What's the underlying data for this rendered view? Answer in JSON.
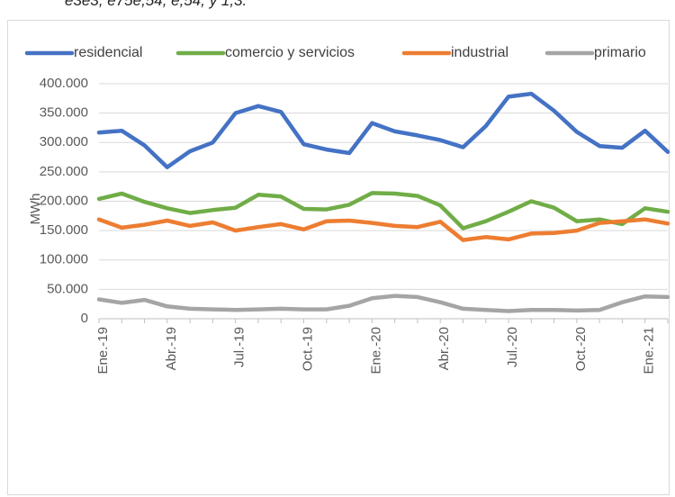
{
  "header_fragment": "e3e3, e75e,54, e,54, y 1,3.",
  "chart_data": {
    "type": "line",
    "title": "",
    "xlabel": "",
    "ylabel": "MWh",
    "ylim": [
      0,
      400000
    ],
    "yticks": [
      0,
      50000,
      100000,
      150000,
      200000,
      250000,
      300000,
      350000,
      400000
    ],
    "ytick_labels": [
      "0",
      "50.000",
      "100.000",
      "150.000",
      "200.000",
      "250.000",
      "300.000",
      "350.000",
      "400.000"
    ],
    "categories": [
      "Ene.-19",
      "Feb.-19",
      "Mar.-19",
      "Abr.-19",
      "May.-19",
      "Jun.-19",
      "Jul.-19",
      "Ago.-19",
      "Sep.-19",
      "Oct.-19",
      "Nov.-19",
      "Dic.-19",
      "Ene.-20",
      "Feb.-20",
      "Mar.-20",
      "Abr.-20",
      "May.-20",
      "Jun.-20",
      "Jul.-20",
      "Ago.-20",
      "Sep.-20",
      "Oct.-20",
      "Nov.-20",
      "Dic.-20",
      "Ene.-21",
      "Feb.-21"
    ],
    "xtick_labels": [
      {
        "index": 0,
        "label": "Ene.-19"
      },
      {
        "index": 3,
        "label": "Abr.-19"
      },
      {
        "index": 6,
        "label": "Jul.-19"
      },
      {
        "index": 9,
        "label": "Oct.-19"
      },
      {
        "index": 12,
        "label": "Ene.-20"
      },
      {
        "index": 15,
        "label": "Abr.-20"
      },
      {
        "index": 18,
        "label": "Jul.-20"
      },
      {
        "index": 21,
        "label": "Oct.-20"
      },
      {
        "index": 24,
        "label": "Ene.-21"
      }
    ],
    "grid": true,
    "legend": "top",
    "series": [
      {
        "name": "residencial",
        "color": "#4472c4",
        "values": [
          317000,
          320000,
          295000,
          258000,
          285000,
          300000,
          350000,
          362000,
          352000,
          297000,
          288000,
          282000,
          333000,
          319000,
          312000,
          304000,
          292000,
          328000,
          378000,
          383000,
          354000,
          318000,
          294000,
          291000,
          320000,
          284000
        ]
      },
      {
        "name": "comercio y servicios",
        "color": "#70ad47",
        "values": [
          204000,
          213000,
          199000,
          188000,
          180000,
          185000,
          189000,
          211000,
          208000,
          187000,
          186000,
          194000,
          214000,
          213000,
          209000,
          193000,
          154000,
          166000,
          182000,
          200000,
          189000,
          166000,
          169000,
          161000,
          188000,
          182000
        ]
      },
      {
        "name": "industrial",
        "color": "#ed7d31",
        "values": [
          169000,
          155000,
          160000,
          167000,
          158000,
          164000,
          150000,
          156000,
          161000,
          152000,
          166000,
          167000,
          163000,
          158000,
          156000,
          165000,
          134000,
          139000,
          135000,
          145000,
          146000,
          150000,
          163000,
          166000,
          169000,
          162000
        ]
      },
      {
        "name": "primario",
        "color": "#a5a5a5",
        "values": [
          33000,
          27000,
          32000,
          21000,
          17000,
          16000,
          15000,
          16000,
          17000,
          16000,
          16000,
          22000,
          35000,
          39000,
          37000,
          28000,
          17000,
          15000,
          13000,
          15000,
          15000,
          14000,
          15000,
          28000,
          38000,
          37000
        ]
      }
    ]
  }
}
